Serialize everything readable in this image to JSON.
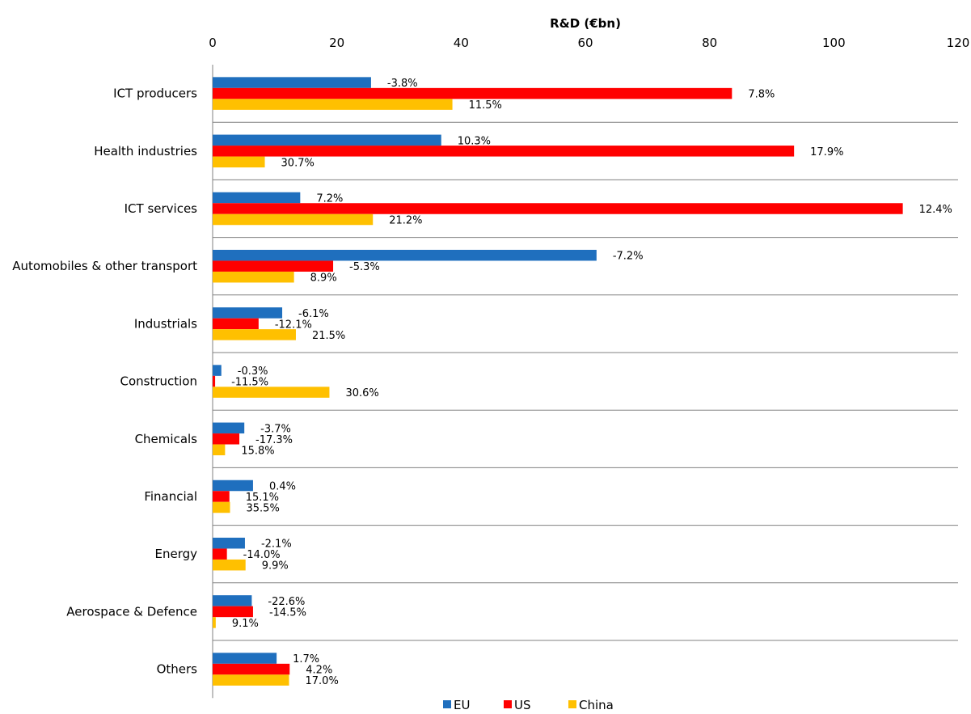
{
  "chart_data": {
    "type": "bar",
    "orientation": "horizontal",
    "title": "",
    "xlabel": "R&D (€bn)",
    "ylabel": "",
    "xlim": [
      0,
      120
    ],
    "xticks": [
      0,
      20,
      40,
      60,
      80,
      100,
      120
    ],
    "grid": false,
    "legend_position": "bottom",
    "categories": [
      "ICT producers",
      "Health industries",
      "ICT services",
      "Automobiles & other transport",
      "Industrials",
      "Construction",
      "Chemicals",
      "Financial",
      "Energy",
      "Aerospace & Defence",
      "Others"
    ],
    "series": [
      {
        "name": "EU",
        "color": "#1f6fbe",
        "values": [
          25.5,
          36.8,
          14.1,
          61.8,
          11.2,
          1.4,
          5.1,
          6.5,
          5.2,
          6.3,
          10.3
        ],
        "labels": [
          "-3.8%",
          "10.3%",
          "7.2%",
          "-7.2%",
          "-6.1%",
          "-0.3%",
          "-3.7%",
          "0.4%",
          "-2.1%",
          "-22.6%",
          "1.7%"
        ]
      },
      {
        "name": "US",
        "color": "#ff0000",
        "values": [
          83.6,
          93.6,
          111.1,
          19.4,
          7.4,
          0.4,
          4.3,
          2.7,
          2.3,
          6.5,
          12.4
        ],
        "labels": [
          "7.8%",
          "17.9%",
          "12.4%",
          "-5.3%",
          "-12.1%",
          "-11.5%",
          "-17.3%",
          "15.1%",
          "-14.0%",
          "-14.5%",
          "4.2%"
        ]
      },
      {
        "name": "China",
        "color": "#ffc000",
        "values": [
          38.6,
          8.4,
          25.8,
          13.1,
          13.4,
          18.8,
          2.0,
          2.8,
          5.3,
          0.5,
          12.3
        ],
        "labels": [
          "11.5%",
          "30.7%",
          "21.2%",
          "8.9%",
          "21.5%",
          "30.6%",
          "15.8%",
          "35.5%",
          "9.9%",
          "9.1%",
          "17.0%"
        ]
      }
    ]
  }
}
